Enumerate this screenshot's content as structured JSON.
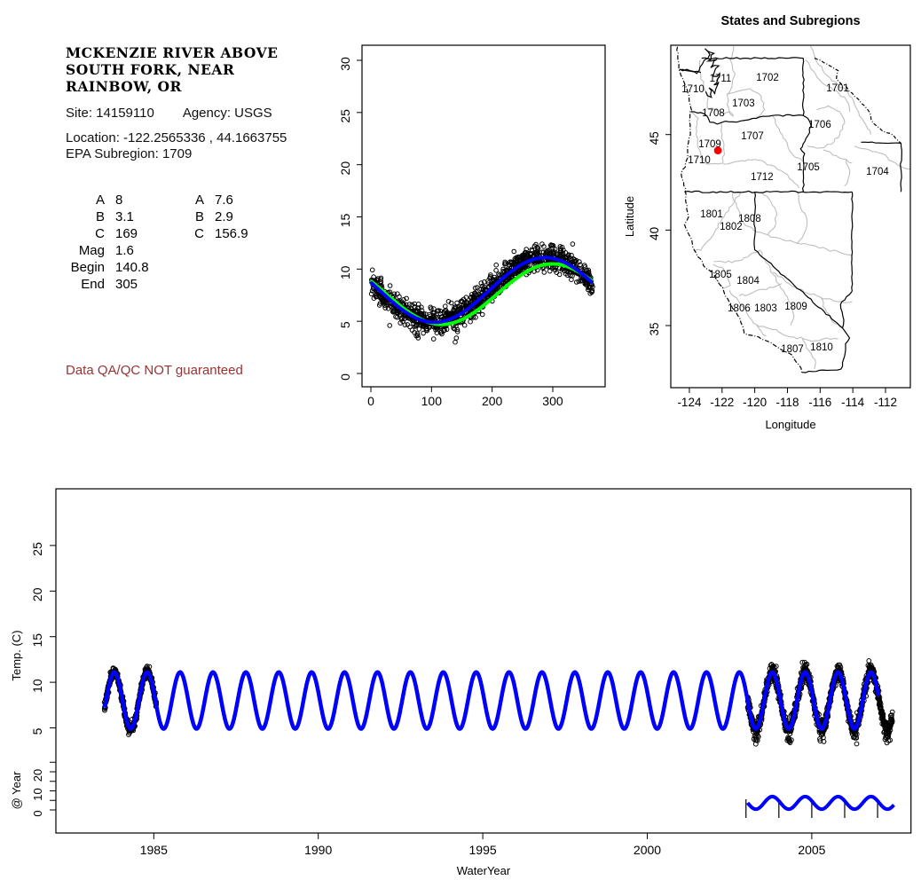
{
  "info": {
    "title_lines": [
      "MCKENZIE RIVER ABOVE",
      "SOUTH FORK, NEAR",
      "RAINBOW, OR"
    ],
    "site_text": "Site: 14159110",
    "agency_text": "Agency: USGS",
    "location_text": "Location: -122.2565336 , 44.1663755",
    "subregion_text": "EPA Subregion: 1709",
    "params_left": [
      {
        "label": "A",
        "value": "8"
      },
      {
        "label": "B",
        "value": "3.1"
      },
      {
        "label": "C",
        "value": "169"
      },
      {
        "label": "Mag",
        "value": "1.6"
      },
      {
        "label": "Begin",
        "value": "140.8"
      },
      {
        "label": "End",
        "value": "305"
      }
    ],
    "params_right": [
      {
        "label": "A",
        "value": "7.6"
      },
      {
        "label": "B",
        "value": "2.9"
      },
      {
        "label": "C",
        "value": "156.9"
      }
    ],
    "warning": "Data QA/QC NOT guaranteed",
    "warning_color": "#993333"
  },
  "chart_data": [
    {
      "id": "seasonal_fit",
      "type": "scatter",
      "title": "",
      "xlabel": "",
      "ylabel": "",
      "x_meaning": "day of year",
      "y_meaning": "water temperature (C)",
      "xlim": [
        -15,
        386
      ],
      "ylim": [
        -1.3,
        31.4
      ],
      "xticks": [
        0,
        100,
        200,
        300
      ],
      "yticks": [
        0,
        5,
        10,
        15,
        20,
        25,
        30
      ],
      "grid": false,
      "points": {
        "marker": "open-circle",
        "color": "#000000",
        "count": 1150,
        "rule": "fit_blue value plus noise sd 0.62, occasional low outliers near days 60-160",
        "approx_range": [
          2.9,
          12.2
        ]
      },
      "model": "T(d) = A + B*sin(2*pi*(d+C)/365)",
      "series": [
        {
          "name": "fit_green",
          "type": "line",
          "color": "#00FF00",
          "A": 7.6,
          "B": 2.9,
          "C": 156.9
        },
        {
          "name": "fit_blue",
          "type": "line",
          "color": "#0000FF",
          "A": 8,
          "B": 3.1,
          "C": 169
        }
      ]
    },
    {
      "id": "subregion_map",
      "type": "map",
      "title": "States and Subregions",
      "xlabel": "Longitude",
      "ylabel": "Latitude",
      "xlim": [
        -125.1,
        -110.5
      ],
      "ylim": [
        31.7,
        49.7
      ],
      "xticks": [
        -124,
        -122,
        -120,
        -118,
        -116,
        -114,
        -112
      ],
      "yticks": [
        35,
        40,
        45
      ],
      "border_colors": {
        "state": "#000000",
        "subregion": "#BEBEBE"
      },
      "labels": [
        {
          "text": "1711",
          "lon": -122.1,
          "lat": 47.96
        },
        {
          "text": "1710",
          "lon": -123.78,
          "lat": 47.4
        },
        {
          "text": "1702",
          "lon": -119.22,
          "lat": 48.0
        },
        {
          "text": "1701",
          "lon": -114.93,
          "lat": 47.45
        },
        {
          "text": "1703",
          "lon": -120.69,
          "lat": 46.66
        },
        {
          "text": "1708",
          "lon": -122.53,
          "lat": 46.15
        },
        {
          "text": "1706",
          "lon": -116.02,
          "lat": 45.54
        },
        {
          "text": "1707",
          "lon": -120.14,
          "lat": 44.94
        },
        {
          "text": "1709",
          "lon": -122.75,
          "lat": 44.52
        },
        {
          "text": "1710",
          "lon": -123.4,
          "lat": 43.69
        },
        {
          "text": "1705",
          "lon": -116.72,
          "lat": 43.31
        },
        {
          "text": "1704",
          "lon": -112.49,
          "lat": 43.08
        },
        {
          "text": "1712",
          "lon": -119.55,
          "lat": 42.8
        },
        {
          "text": "1801",
          "lon": -122.64,
          "lat": 40.85
        },
        {
          "text": "1808",
          "lon": -120.31,
          "lat": 40.62
        },
        {
          "text": "1802",
          "lon": -121.45,
          "lat": 40.2
        },
        {
          "text": "1805",
          "lon": -122.1,
          "lat": 37.69
        },
        {
          "text": "1804",
          "lon": -120.41,
          "lat": 37.37
        },
        {
          "text": "1806",
          "lon": -120.96,
          "lat": 35.93
        },
        {
          "text": "1803",
          "lon": -119.33,
          "lat": 35.93
        },
        {
          "text": "1809",
          "lon": -117.48,
          "lat": 36.02
        },
        {
          "text": "1807",
          "lon": -117.7,
          "lat": 33.79
        },
        {
          "text": "1810",
          "lon": -115.91,
          "lat": 33.88
        }
      ],
      "site_point": {
        "lon": -122.2565336,
        "lat": 44.1663755,
        "color": "#FF0000"
      }
    },
    {
      "id": "timeseries",
      "type": "line",
      "xlabel": "WaterYear",
      "ylabel": "Temp. (C)",
      "ylabel_inset": "@ Year",
      "xlim": [
        1982.0,
        2008.05
      ],
      "xticks": [
        1985,
        1990,
        1995,
        2000,
        2005
      ],
      "yticks_main": [
        5,
        10,
        15,
        20,
        25
      ],
      "yticks_inset_all": [
        0,
        5,
        10,
        15,
        20,
        25
      ],
      "yticks_inset_labeled": [
        0,
        10,
        20
      ],
      "fit": {
        "color": "#0000FF",
        "mean": 8,
        "amplitude": 3.1,
        "period_years": 1,
        "peak_anchor": 1983.8,
        "start": 1983.51,
        "end": 2007.03
      },
      "observed": {
        "marker": "open-circle",
        "color": "#000000",
        "periods": [
          {
            "start": 1983.5,
            "end": 1985.08,
            "noise_sd": 0.28
          },
          {
            "start": 2003.05,
            "end": 2007.45,
            "noise_sd": 0.42
          }
        ]
      },
      "inset": {
        "color": "#0000FF",
        "start": 2003.05,
        "end": 2007.5,
        "center": 3.7,
        "amplitude": 3.3,
        "year_ticks": [
          2003,
          2004,
          2005,
          2006,
          2007
        ]
      }
    }
  ]
}
